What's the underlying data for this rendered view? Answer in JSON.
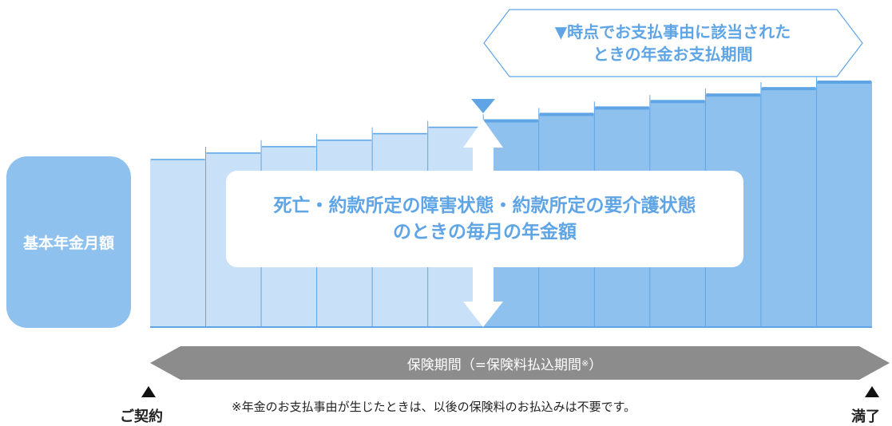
{
  "callout": {
    "line1": "▼時点でお支払事由に該当された",
    "line2": "ときの年金お支払期間"
  },
  "side_label": "基本年金月額",
  "center_box": {
    "line1": "死亡・約款所定の障害状態・約款所定の要介護状態",
    "line2": "のときの毎月の年金額"
  },
  "period": {
    "label": "保険期間（=保険料払込期間",
    "mark": "※",
    "close": "）"
  },
  "note": "※年金のお支払事由が生じたときは、以後の保険料のお払込みは不要です。",
  "start_label": "ご契約",
  "end_label": "満了",
  "steps": {
    "count": 13,
    "event_index": 6
  },
  "colors": {
    "light_bar": "#c9e1f8",
    "dark_bar": "#8ec1ee",
    "bar_line": "#5fa5e6",
    "accent": "#5fa5e6",
    "period_arrow": "#8c8c8c"
  }
}
